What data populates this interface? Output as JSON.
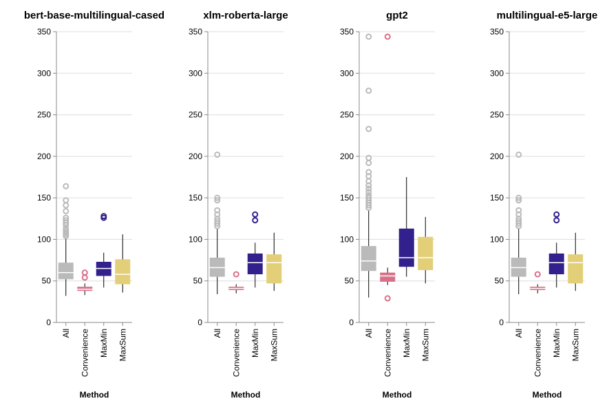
{
  "chart_data": {
    "type": "boxplot",
    "x_axis_title": "Method",
    "categories": [
      "All",
      "Convenience",
      "MaxMin",
      "MaxSum"
    ],
    "colors": {
      "All": "#bababa",
      "Convenience": "#d97088",
      "MaxMin": "#32208d",
      "MaxSum": "#e2cf78"
    },
    "y_ticks": [
      0,
      50,
      100,
      150,
      200,
      250,
      300,
      350
    ],
    "ylim": [
      0,
      350
    ],
    "grid": true,
    "panels": [
      {
        "title": "bert-base-multilingual-cased",
        "boxes": [
          {
            "category": "All",
            "min": 32,
            "q1": 52,
            "median": 60,
            "q3": 72,
            "max": 102,
            "outliers": [
              104,
              106,
              108,
              110,
              113,
              117,
              120,
              123,
              126,
              134,
              141,
              147,
              164
            ]
          },
          {
            "category": "Convenience",
            "min": 33,
            "q1": 38,
            "median": 40,
            "q3": 43,
            "max": 47,
            "outliers": [
              54,
              60
            ]
          },
          {
            "category": "MaxMin",
            "min": 42,
            "q1": 56,
            "median": 65,
            "q3": 73,
            "max": 84,
            "outliers": [
              126,
              128
            ]
          },
          {
            "category": "MaxSum",
            "min": 36,
            "q1": 46,
            "median": 58,
            "q3": 76,
            "max": 106,
            "outliers": []
          }
        ]
      },
      {
        "title": "xlm-roberta-large",
        "boxes": [
          {
            "category": "All",
            "min": 34,
            "q1": 55,
            "median": 66,
            "q3": 78,
            "max": 113,
            "outliers": [
              116,
              119,
              122,
              125,
              130,
              135,
              147,
              150,
              202
            ]
          },
          {
            "category": "Convenience",
            "min": 35,
            "q1": 39,
            "median": 41,
            "q3": 43,
            "max": 46,
            "outliers": [
              58
            ]
          },
          {
            "category": "MaxMin",
            "min": 42,
            "q1": 58,
            "median": 72,
            "q3": 83,
            "max": 96,
            "outliers": [
              123,
              130
            ]
          },
          {
            "category": "MaxSum",
            "min": 38,
            "q1": 47,
            "median": 72,
            "q3": 82,
            "max": 108,
            "outliers": []
          }
        ]
      },
      {
        "title": "gpt2",
        "boxes": [
          {
            "category": "All",
            "min": 30,
            "q1": 62,
            "median": 74,
            "q3": 92,
            "max": 136,
            "outliers": [
              138,
              141,
              144,
              147,
              150,
              153,
              157,
              161,
              165,
              170,
              176,
              181,
              192,
              198,
              233,
              279,
              344
            ]
          },
          {
            "category": "Convenience",
            "min": 45,
            "q1": 49,
            "median": 56,
            "q3": 60,
            "max": 66,
            "outliers": [
              29,
              344
            ]
          },
          {
            "category": "MaxMin",
            "min": 55,
            "q1": 67,
            "median": 78,
            "q3": 113,
            "max": 175,
            "outliers": []
          },
          {
            "category": "MaxSum",
            "min": 47,
            "q1": 63,
            "median": 78,
            "q3": 103,
            "max": 127,
            "outliers": []
          }
        ]
      },
      {
        "title": "multilingual-e5-large",
        "boxes": [
          {
            "category": "All",
            "min": 34,
            "q1": 55,
            "median": 66,
            "q3": 78,
            "max": 113,
            "outliers": [
              116,
              119,
              122,
              125,
              130,
              135,
              147,
              150,
              202
            ]
          },
          {
            "category": "Convenience",
            "min": 35,
            "q1": 39,
            "median": 41,
            "q3": 43,
            "max": 46,
            "outliers": [
              58
            ]
          },
          {
            "category": "MaxMin",
            "min": 42,
            "q1": 58,
            "median": 72,
            "q3": 83,
            "max": 96,
            "outliers": [
              123,
              130
            ]
          },
          {
            "category": "MaxSum",
            "min": 38,
            "q1": 47,
            "median": 72,
            "q3": 82,
            "max": 108,
            "outliers": []
          }
        ]
      }
    ]
  }
}
